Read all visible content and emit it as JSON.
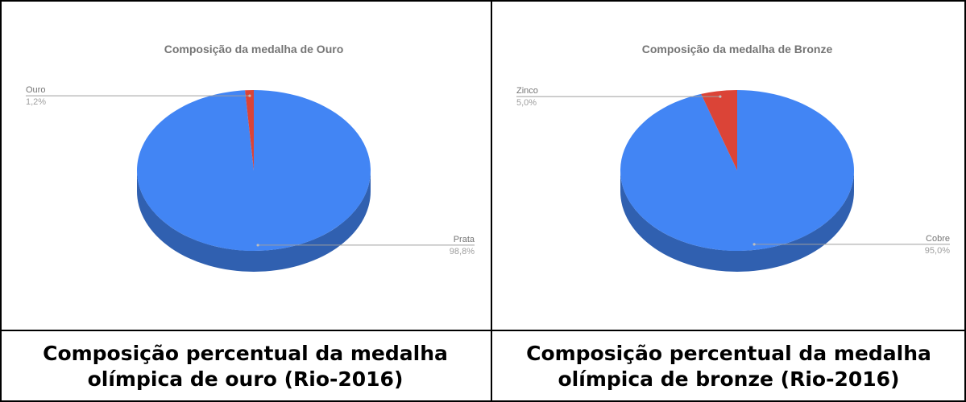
{
  "chart_data": [
    {
      "type": "pie",
      "title": "Composição da medalha de Ouro",
      "categories": [
        "Prata",
        "Ouro"
      ],
      "values": [
        98.8,
        1.2
      ],
      "value_labels": [
        "98,8%",
        "1,2%"
      ],
      "colors": [
        "#4285f4",
        "#db4437"
      ]
    },
    {
      "type": "pie",
      "title": "Composição da medalha de Bronze",
      "categories": [
        "Cobre",
        "Zinco"
      ],
      "values": [
        95.0,
        5.0
      ],
      "value_labels": [
        "95,0%",
        "5,0%"
      ],
      "colors": [
        "#4285f4",
        "#db4437"
      ]
    }
  ],
  "captions": [
    "Composição percentual da medalha olímpica de ouro (Rio-2016)",
    "Composição percentual da medalha olímpica de bronze (Rio-2016)"
  ]
}
